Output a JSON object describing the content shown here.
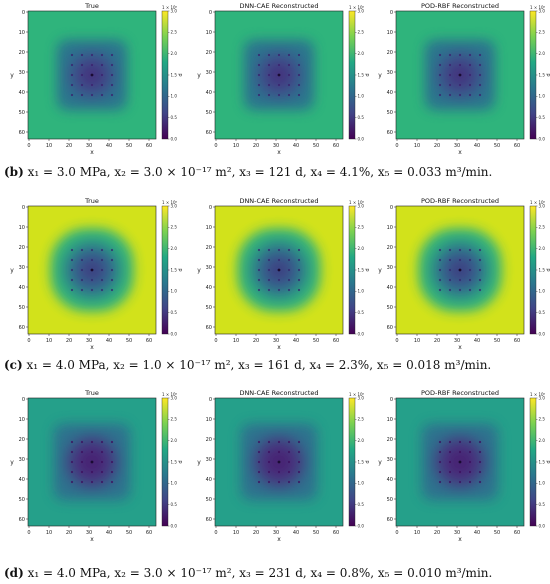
{
  "figure": {
    "panel_titles": [
      "True",
      "DNN-CAE Reconstructed",
      "POD-RBF Reconstructed"
    ],
    "x_ticks": [
      "0",
      "10",
      "20",
      "30",
      "40",
      "50",
      "60"
    ],
    "y_ticks": [
      "0",
      "10",
      "20",
      "30",
      "40",
      "50",
      "60"
    ],
    "xlabel": "x",
    "ylabel": "y",
    "colorbar_ticks": [
      "0.0",
      "0.5",
      "1.0",
      "1.5",
      "2.0",
      "2.5",
      "3.0"
    ],
    "colorbar_label": "p",
    "colorbar_multiplier": "1 × 10⁶",
    "colormap": "viridis"
  },
  "rows": [
    {
      "id": "b",
      "caption": {
        "label": "(b)",
        "text": "x₁ = 3.0 MPa, x₂ = 3.0 × 10⁻¹⁷ m², x₃ = 121 d, x₄ = 4.1%, x₅ = 0.033 m³/min."
      },
      "background_color": "#2fb47c"
    },
    {
      "id": "c",
      "caption": {
        "label": "(c)",
        "text": "x₁ = 4.0 MPa, x₂ = 1.0 × 10⁻¹⁷ m², x₃ = 161 d, x₄ = 2.3%, x₅ = 0.018 m³/min."
      },
      "background_color": "#d2e21b"
    },
    {
      "id": "d",
      "caption": {
        "label": "(d)",
        "text": "x₁ = 4.0 MPa, x₂ = 3.0 × 10⁻¹⁷ m², x₃ = 231 d, x₄ = 0.8%, x₅ = 0.010 m³/min."
      },
      "background_color": "#25a08a"
    }
  ]
}
